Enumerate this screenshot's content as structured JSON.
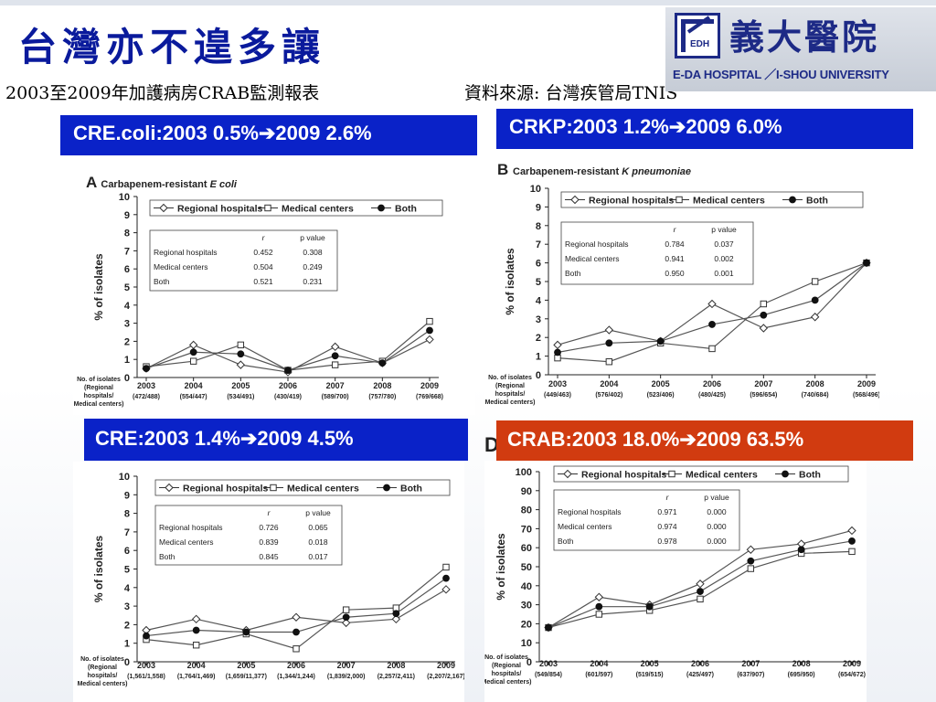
{
  "page": {
    "title": "台灣亦不遑多讓",
    "subtitle": "2003至2009年加護病房CRAB監測報表",
    "source": "資料來源: 台灣疾管局TNIS"
  },
  "logo": {
    "name_cn": "義大醫院",
    "mark_text": "EDH",
    "name_en": "E-DA HOSPITAL ／I-SHOU UNIVERSITY"
  },
  "labels": {
    "a": {
      "text_before": "CRE.coli:2003 0.5%",
      "arrow": "➔",
      "text_after": "2009 2.6%"
    },
    "b": {
      "text_before": "CRKP:2003 1.2%",
      "arrow": "➔",
      "text_after": "2009 6.0%"
    },
    "c": {
      "text_before": "CRE:2003 1.4%",
      "arrow": "➔",
      "text_after": "2009 4.5%"
    },
    "d": {
      "text_before": "CRAB:2003 18.0%",
      "arrow": "➔",
      "text_after": "2009 63.5%"
    }
  },
  "panel_letter_d": "D",
  "colors": {
    "title": "#0a1a9c",
    "label_blue": "#0a22c8",
    "label_red": "#d13b10",
    "line": "#555555"
  },
  "chart_data": [
    {
      "id": "a",
      "type": "line",
      "panel_letter": "A",
      "title_plain": "Carbapenem-resistant ",
      "title_italic": "E coli",
      "ylabel": "% of isolates",
      "ylim": [
        0,
        10
      ],
      "yticks": [
        0,
        1,
        2,
        3,
        4,
        5,
        6,
        7,
        8,
        9,
        10
      ],
      "categories": [
        "2003",
        "2004",
        "2005",
        "2006",
        "2007",
        "2008",
        "2009"
      ],
      "counts_header": [
        "No. of isolates",
        "(Regional",
        "hospitals/",
        "Medical centers)"
      ],
      "counts": [
        "(472/488)",
        "(554/447)",
        "(534/491)",
        "(430/419)",
        "(589/700)",
        "(757/780)",
        "(769/668)"
      ],
      "series": [
        {
          "name": "Regional hospitals",
          "marker": "diamond",
          "values": [
            0.5,
            1.8,
            0.7,
            0.3,
            1.7,
            0.8,
            2.1
          ]
        },
        {
          "name": "Medical centers",
          "marker": "square",
          "values": [
            0.6,
            0.9,
            1.8,
            0.4,
            0.7,
            0.9,
            3.1
          ]
        },
        {
          "name": "Both",
          "marker": "circle",
          "values": [
            0.5,
            1.4,
            1.3,
            0.4,
            1.2,
            0.8,
            2.6
          ]
        }
      ],
      "stats": {
        "headers": [
          "r",
          "p value"
        ],
        "rows": [
          {
            "label": "Regional hospitals",
            "r": "0.452",
            "p": "0.308"
          },
          {
            "label": "Medical centers",
            "r": "0.504",
            "p": "0.249"
          },
          {
            "label": "Both",
            "r": "0.521",
            "p": "0.231"
          }
        ]
      }
    },
    {
      "id": "b",
      "type": "line",
      "panel_letter": "B",
      "title_plain": "Carbapenem-resistant ",
      "title_italic": "K pneumoniae",
      "ylabel": "% of isolates",
      "ylim": [
        0,
        10
      ],
      "yticks": [
        0,
        1,
        2,
        3,
        4,
        5,
        6,
        7,
        8,
        9,
        10
      ],
      "categories": [
        "2003",
        "2004",
        "2005",
        "2006",
        "2007",
        "2008",
        "2009"
      ],
      "counts_header": [
        "No. of isolates",
        "(Regional",
        "hospitals/",
        "Medical centers)"
      ],
      "counts": [
        "(449/463)",
        "(576/402)",
        "(523/406)",
        "(480/425)",
        "(596/654)",
        "(740/684)",
        "(568/496)"
      ],
      "series": [
        {
          "name": "Regional hospitals",
          "marker": "diamond",
          "values": [
            1.6,
            2.4,
            1.8,
            3.8,
            2.5,
            3.1,
            6.0
          ]
        },
        {
          "name": "Medical centers",
          "marker": "square",
          "values": [
            0.9,
            0.7,
            1.7,
            1.4,
            3.8,
            5.0,
            6.0
          ]
        },
        {
          "name": "Both",
          "marker": "circle",
          "values": [
            1.2,
            1.7,
            1.8,
            2.7,
            3.2,
            4.0,
            6.0
          ]
        }
      ],
      "stats": {
        "headers": [
          "r",
          "p value"
        ],
        "rows": [
          {
            "label": "Regional hospitals",
            "r": "0.784",
            "p": "0.037"
          },
          {
            "label": "Medical centers",
            "r": "0.941",
            "p": "0.002"
          },
          {
            "label": "Both",
            "r": "0.950",
            "p": "0.001"
          }
        ]
      }
    },
    {
      "id": "c",
      "type": "line",
      "panel_letter": "",
      "title_plain": "",
      "title_italic": "",
      "ylabel": "% of isolates",
      "ylim": [
        0,
        10
      ],
      "yticks": [
        0,
        1,
        2,
        3,
        4,
        5,
        6,
        7,
        8,
        9,
        10
      ],
      "categories": [
        "2003",
        "2004",
        "2005",
        "2006",
        "2007",
        "2008",
        "2009"
      ],
      "counts_header": [
        "No. of isolates",
        "(Regional",
        "hospitals/",
        "Medical centers)"
      ],
      "counts": [
        "(1,561/1,558)",
        "(1,764/1,469)",
        "(1,659/11,377)",
        "(1,344/1,244)",
        "(1,839/2,000)",
        "(2,257/2,411)",
        "(2,207/2,167)"
      ],
      "series": [
        {
          "name": "Regional hospitals",
          "marker": "diamond",
          "values": [
            1.7,
            2.3,
            1.7,
            2.4,
            2.1,
            2.3,
            3.9
          ]
        },
        {
          "name": "Medical centers",
          "marker": "square",
          "values": [
            1.2,
            0.9,
            1.5,
            0.7,
            2.8,
            2.9,
            5.1
          ]
        },
        {
          "name": "Both",
          "marker": "circle",
          "values": [
            1.4,
            1.7,
            1.6,
            1.6,
            2.4,
            2.6,
            4.5
          ]
        }
      ],
      "stats": {
        "headers": [
          "r",
          "p value"
        ],
        "rows": [
          {
            "label": "Regional hospitals",
            "r": "0.726",
            "p": "0.065"
          },
          {
            "label": "Medical centers",
            "r": "0.839",
            "p": "0.018"
          },
          {
            "label": "Both",
            "r": "0.845",
            "p": "0.017"
          }
        ]
      }
    },
    {
      "id": "d",
      "type": "line",
      "panel_letter": "",
      "title_plain": "",
      "title_italic": "",
      "ylabel": "% of isolates",
      "ylim": [
        0,
        100
      ],
      "yticks": [
        0,
        10,
        20,
        30,
        40,
        50,
        60,
        70,
        80,
        90,
        100
      ],
      "categories": [
        "2003",
        "2004",
        "2005",
        "2006",
        "2007",
        "2008",
        "2009"
      ],
      "counts_header": [
        "No. of isolates",
        "(Regional",
        "hospitals/",
        "Medical centers)"
      ],
      "counts": [
        "(549/854)",
        "(601/597)",
        "(519/515)",
        "(425/497)",
        "(637/907)",
        "(695/950)",
        "(654/672)"
      ],
      "series": [
        {
          "name": "Regional hospitals",
          "marker": "diamond",
          "values": [
            18,
            34,
            30,
            41,
            59,
            62,
            69
          ]
        },
        {
          "name": "Medical centers",
          "marker": "square",
          "values": [
            18,
            25,
            27,
            33,
            49,
            57,
            58
          ]
        },
        {
          "name": "Both",
          "marker": "circle",
          "values": [
            18,
            29,
            29,
            37,
            53,
            59,
            63.5
          ]
        }
      ],
      "stats": {
        "headers": [
          "r",
          "p value"
        ],
        "rows": [
          {
            "label": "Regional hospitals",
            "r": "0.971",
            "p": "0.000"
          },
          {
            "label": "Medical centers",
            "r": "0.974",
            "p": "0.000"
          },
          {
            "label": "Both",
            "r": "0.978",
            "p": "0.000"
          }
        ]
      }
    }
  ]
}
